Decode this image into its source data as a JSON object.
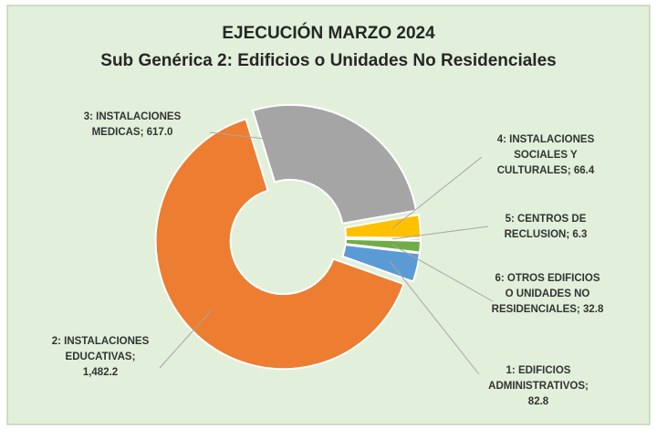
{
  "chart_data": {
    "type": "donut",
    "title": "EJECUCIÓN MARZO 2024",
    "subtitle": "Sub Genérica 2: Edificios o Unidades No Residenciales",
    "categories": [
      "1: EDIFICIOS ADMINISTRATIVOS;",
      "2: INSTALACIONES EDUCATIVAS;",
      "3: INSTALACIONES MEDICAS;",
      "4: INSTALACIONES SOCIALES Y CULTURALES;",
      "5: CENTROS DE RECLUSION;",
      "6: OTROS EDIFICIOS O UNIDADES NO RESIDENCIALES;"
    ],
    "values": [
      82.8,
      1482.2,
      617.0,
      66.4,
      6.3,
      32.8
    ],
    "value_labels": [
      "82.8",
      "1,482.2",
      "617.0",
      "66.4",
      "6.3",
      "32.8"
    ],
    "colors": [
      "#5b9bd5",
      "#ed7d31",
      "#a5a5a5",
      "#ffc000",
      "#4472c4",
      "#70ad47"
    ]
  }
}
